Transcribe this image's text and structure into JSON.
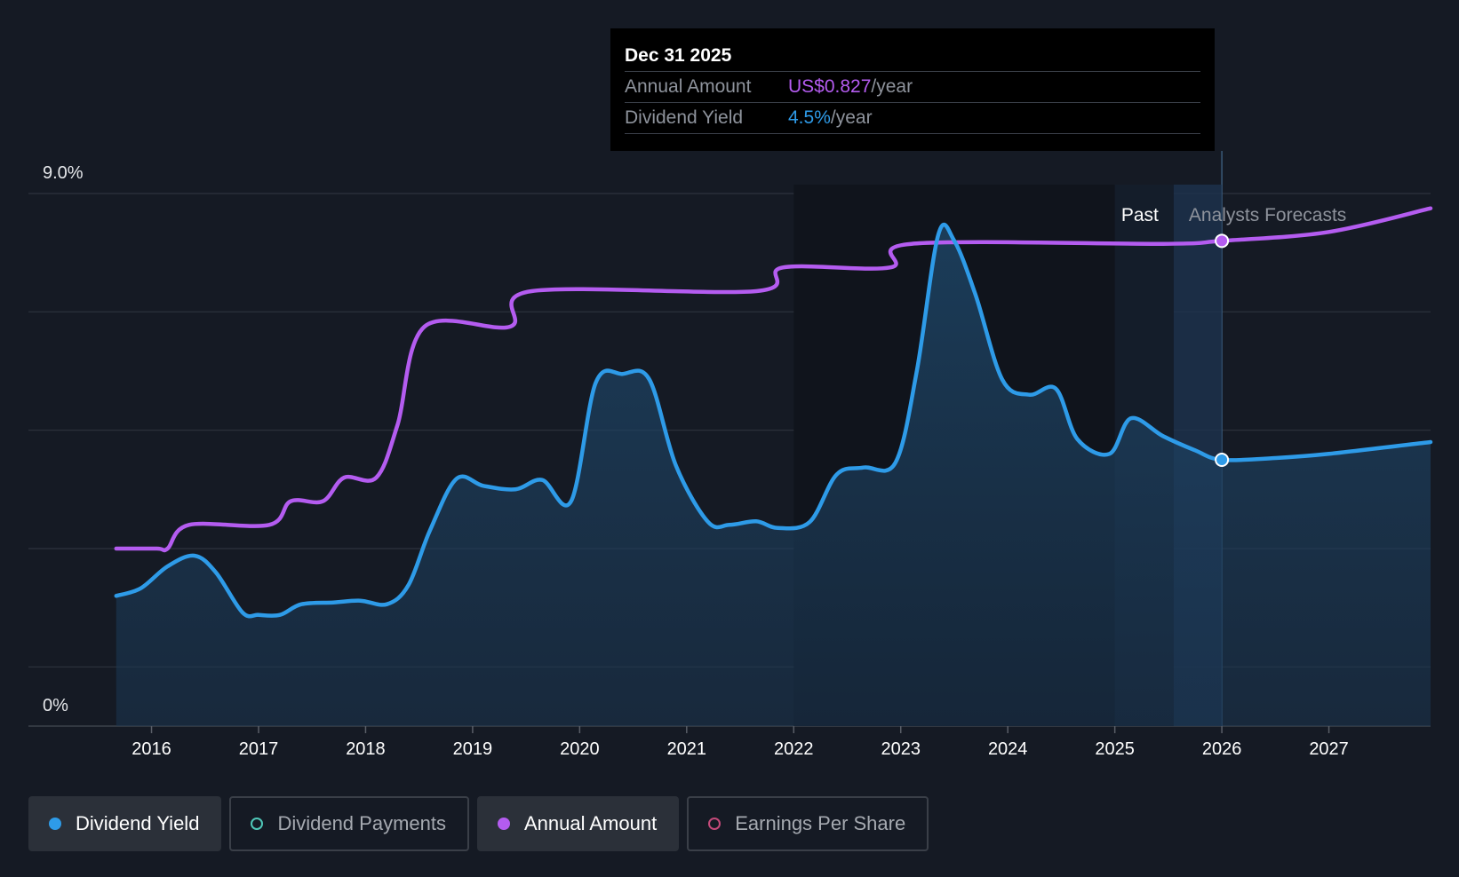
{
  "tooltip": {
    "date": "Dec 31 2025",
    "annual_label": "Annual Amount",
    "annual_value": "US$0.827",
    "annual_unit": "/year",
    "yield_label": "Dividend Yield",
    "yield_value": "4.5%",
    "yield_unit": "/year"
  },
  "legend": [
    {
      "label": "Dividend Yield",
      "color": "#2e9be8",
      "active": true
    },
    {
      "label": "Dividend Payments",
      "color": "#4fc7b8",
      "active": false
    },
    {
      "label": "Annual Amount",
      "color": "#b45cf0",
      "active": true
    },
    {
      "label": "Earnings Per Share",
      "color": "#c44a7a",
      "active": false
    }
  ],
  "chart_data": {
    "type": "line",
    "ylabel_top": "9.0%",
    "ylabel_bottom": "0%",
    "ylim": [
      0,
      9.0
    ],
    "past_label": "Past",
    "forecast_label": "Analysts Forecasts",
    "xtick_labels": [
      "2016",
      "2017",
      "2018",
      "2019",
      "2020",
      "2021",
      "2022",
      "2023",
      "2024",
      "2025",
      "2026",
      "2027"
    ],
    "xtick_values": [
      2016,
      2017,
      2018,
      2019,
      2020,
      2021,
      2022,
      2023,
      2024,
      2025,
      2026,
      2027
    ],
    "xlim": [
      2014.85,
      2027.95
    ],
    "forecast_start": 2025.55,
    "selected_x": 2026.0,
    "series": [
      {
        "name": "Dividend Yield",
        "unit": "%",
        "color": "#2e9be8",
        "points": [
          [
            2015.67,
            2.2
          ],
          [
            2015.9,
            2.33
          ],
          [
            2016.15,
            2.7
          ],
          [
            2016.4,
            2.88
          ],
          [
            2016.6,
            2.6
          ],
          [
            2016.85,
            1.92
          ],
          [
            2017.0,
            1.88
          ],
          [
            2017.2,
            1.88
          ],
          [
            2017.4,
            2.06
          ],
          [
            2017.7,
            2.09
          ],
          [
            2017.95,
            2.12
          ],
          [
            2018.2,
            2.06
          ],
          [
            2018.4,
            2.38
          ],
          [
            2018.6,
            3.3
          ],
          [
            2018.85,
            4.18
          ],
          [
            2019.1,
            4.06
          ],
          [
            2019.4,
            4.0
          ],
          [
            2019.65,
            4.16
          ],
          [
            2019.92,
            3.8
          ],
          [
            2020.15,
            5.8
          ],
          [
            2020.4,
            5.95
          ],
          [
            2020.65,
            5.86
          ],
          [
            2020.9,
            4.4
          ],
          [
            2021.2,
            3.45
          ],
          [
            2021.4,
            3.4
          ],
          [
            2021.65,
            3.46
          ],
          [
            2021.85,
            3.35
          ],
          [
            2022.15,
            3.45
          ],
          [
            2022.4,
            4.25
          ],
          [
            2022.65,
            4.37
          ],
          [
            2022.95,
            4.45
          ],
          [
            2023.15,
            6.0
          ],
          [
            2023.35,
            8.3
          ],
          [
            2023.5,
            8.2
          ],
          [
            2023.7,
            7.28
          ],
          [
            2023.95,
            5.85
          ],
          [
            2024.2,
            5.6
          ],
          [
            2024.45,
            5.7
          ],
          [
            2024.65,
            4.85
          ],
          [
            2024.95,
            4.6
          ],
          [
            2025.15,
            5.2
          ],
          [
            2025.45,
            4.9
          ],
          [
            2025.75,
            4.66
          ],
          [
            2026.0,
            4.5
          ],
          [
            2026.5,
            4.53
          ],
          [
            2027.0,
            4.6
          ],
          [
            2027.95,
            4.8
          ]
        ]
      },
      {
        "name": "Annual Amount",
        "unit": "US$/year",
        "color": "#b45cf0",
        "points": [
          [
            2015.67,
            3.0
          ],
          [
            2016.05,
            3.0
          ],
          [
            2016.15,
            3.0
          ],
          [
            2016.35,
            3.4
          ],
          [
            2017.1,
            3.4
          ],
          [
            2017.3,
            3.8
          ],
          [
            2017.6,
            3.8
          ],
          [
            2017.8,
            4.2
          ],
          [
            2018.1,
            4.2
          ],
          [
            2018.3,
            5.1
          ],
          [
            2018.55,
            6.75
          ],
          [
            2019.35,
            6.75
          ],
          [
            2019.55,
            7.35
          ],
          [
            2021.65,
            7.35
          ],
          [
            2021.9,
            7.75
          ],
          [
            2022.9,
            7.75
          ],
          [
            2023.1,
            8.15
          ],
          [
            2025.45,
            8.15
          ],
          [
            2026.0,
            8.2
          ],
          [
            2027.0,
            8.35
          ],
          [
            2027.95,
            8.75
          ]
        ]
      }
    ]
  }
}
